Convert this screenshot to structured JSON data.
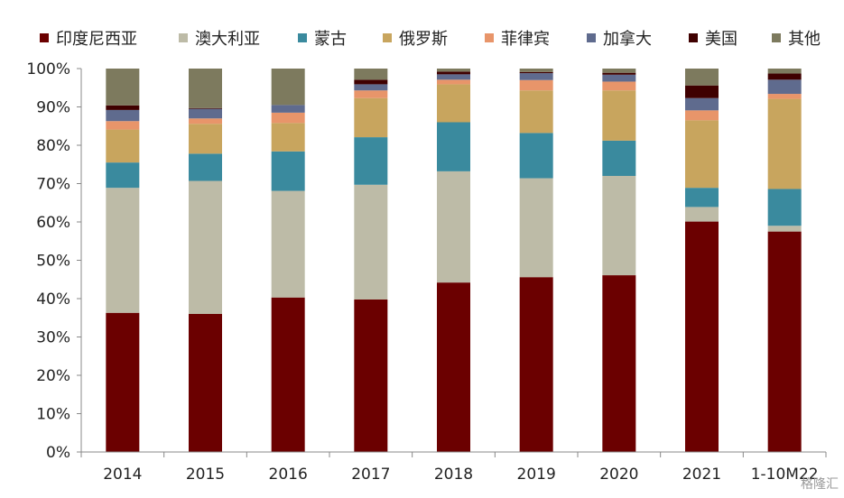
{
  "chart_data": {
    "type": "bar",
    "stacked": true,
    "percent_stacked": true,
    "categories": [
      "2014",
      "2015",
      "2016",
      "2017",
      "2018",
      "2019",
      "2020",
      "2021",
      "1-10M22"
    ],
    "ylim": [
      0,
      100
    ],
    "yticks": [
      "0%",
      "10%",
      "20%",
      "30%",
      "40%",
      "50%",
      "60%",
      "70%",
      "80%",
      "90%",
      "100%"
    ],
    "grid": false,
    "legend_position": "top",
    "series": [
      {
        "name": "印度尼西亚",
        "color": "#6B0000",
        "values": [
          36.3,
          36.0,
          40.3,
          39.8,
          44.2,
          45.6,
          46.1,
          60.1,
          57.5
        ]
      },
      {
        "name": "澳大利亚",
        "color": "#BDBBA7",
        "values": [
          32.6,
          34.7,
          27.8,
          29.9,
          29.0,
          25.8,
          25.9,
          3.8,
          1.5
        ]
      },
      {
        "name": "蒙古",
        "color": "#3A8A9E",
        "values": [
          6.6,
          7.1,
          10.3,
          12.4,
          12.8,
          11.8,
          9.2,
          5.0,
          9.6
        ]
      },
      {
        "name": "俄罗斯",
        "color": "#C8A55E",
        "values": [
          8.6,
          7.8,
          7.4,
          10.2,
          9.9,
          11.1,
          13.1,
          17.6,
          23.5
        ]
      },
      {
        "name": "菲律宾",
        "color": "#E8956A",
        "values": [
          2.2,
          1.4,
          2.7,
          2.0,
          1.2,
          2.7,
          2.3,
          2.6,
          1.3
        ]
      },
      {
        "name": "加拿大",
        "color": "#5F6B8E",
        "values": [
          2.9,
          2.5,
          2.0,
          1.6,
          1.4,
          1.8,
          1.8,
          3.2,
          3.7
        ]
      },
      {
        "name": "美国",
        "color": "#3F0000",
        "values": [
          1.2,
          0.2,
          0.0,
          1.2,
          0.7,
          0.3,
          0.5,
          3.3,
          1.6
        ]
      },
      {
        "name": "其他",
        "color": "#7D7A5E",
        "values": [
          9.6,
          10.3,
          9.5,
          2.9,
          0.8,
          0.9,
          1.1,
          4.4,
          1.3
        ]
      }
    ]
  },
  "watermark": "格隆汇"
}
